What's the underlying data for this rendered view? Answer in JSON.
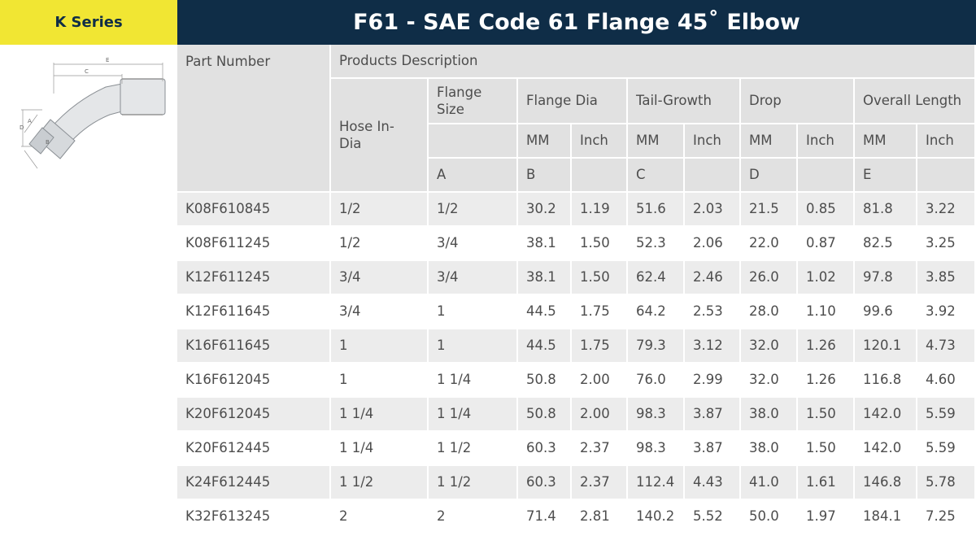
{
  "header": {
    "series": "K Series",
    "title": "F61 - SAE Code 61 Flange 45˚ Elbow"
  },
  "drawing": {
    "labels": [
      "E",
      "C",
      "D",
      "A",
      "B"
    ]
  },
  "table": {
    "header": {
      "part_number": "Part Number",
      "products_description": "Products Description",
      "hose_in_dia": "Hose In-Dia",
      "flange_size": "Flange Size",
      "groups": [
        "Flange Dia",
        "Tail-Growth",
        "Drop",
        "Overall Length"
      ],
      "units": [
        "MM",
        "Inch",
        "MM",
        "Inch",
        "MM",
        "Inch",
        "MM",
        "Inch"
      ],
      "letters": [
        "A",
        "B",
        "C",
        "D",
        "E"
      ]
    },
    "rows": [
      [
        "K08F610845",
        "1/2",
        "1/2",
        "30.2",
        "1.19",
        "51.6",
        "2.03",
        "21.5",
        "0.85",
        "81.8",
        "3.22"
      ],
      [
        "K08F611245",
        "1/2",
        "3/4",
        "38.1",
        "1.50",
        "52.3",
        "2.06",
        "22.0",
        "0.87",
        "82.5",
        "3.25"
      ],
      [
        "K12F611245",
        "3/4",
        "3/4",
        "38.1",
        "1.50",
        "62.4",
        "2.46",
        "26.0",
        "1.02",
        "97.8",
        "3.85"
      ],
      [
        "K12F611645",
        "3/4",
        "1",
        "44.5",
        "1.75",
        "64.2",
        "2.53",
        "28.0",
        "1.10",
        "99.6",
        "3.92"
      ],
      [
        "K16F611645",
        "1",
        "1",
        "44.5",
        "1.75",
        "79.3",
        "3.12",
        "32.0",
        "1.26",
        "120.1",
        "4.73"
      ],
      [
        "K16F612045",
        "1",
        "1 1/4",
        "50.8",
        "2.00",
        "76.0",
        "2.99",
        "32.0",
        "1.26",
        "116.8",
        "4.60"
      ],
      [
        "K20F612045",
        "1 1/4",
        "1 1/4",
        "50.8",
        "2.00",
        "98.3",
        "3.87",
        "38.0",
        "1.50",
        "142.0",
        "5.59"
      ],
      [
        "K20F612445",
        "1 1/4",
        "1 1/2",
        "60.3",
        "2.37",
        "98.3",
        "3.87",
        "38.0",
        "1.50",
        "142.0",
        "5.59"
      ],
      [
        "K24F612445",
        "1 1/2",
        "1 1/2",
        "60.3",
        "2.37",
        "112.4",
        "4.43",
        "41.0",
        "1.61",
        "146.8",
        "5.78"
      ],
      [
        "K32F613245",
        "2",
        "2",
        "71.4",
        "2.81",
        "140.2",
        "5.52",
        "50.0",
        "1.97",
        "184.1",
        "7.25"
      ]
    ]
  }
}
